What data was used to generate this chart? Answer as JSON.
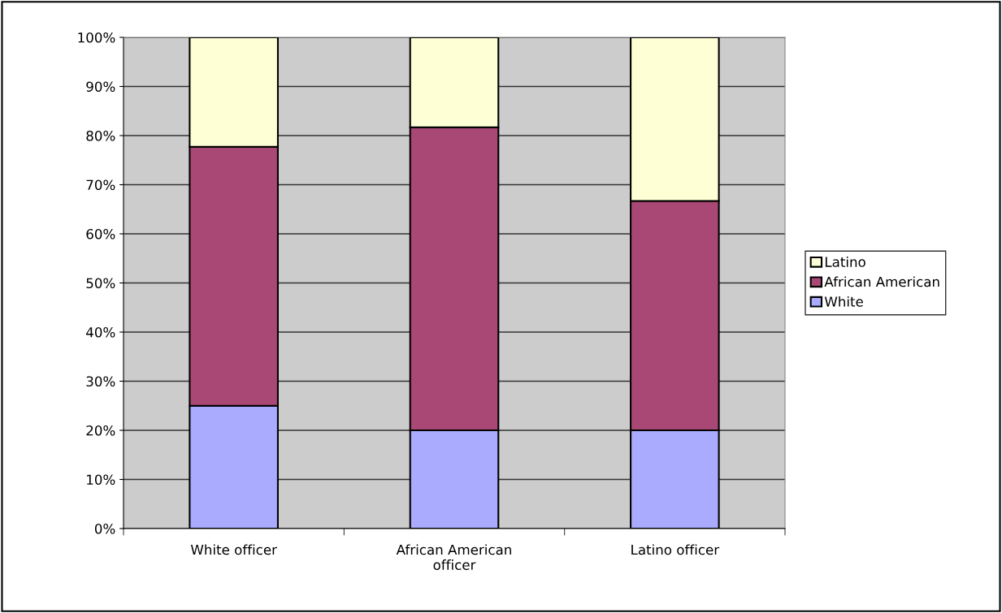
{
  "chart_data": {
    "type": "bar",
    "stacked": true,
    "categories": [
      "White officer",
      "African American\nofficer",
      "Latino officer"
    ],
    "series": [
      {
        "name": "White",
        "color": "#aaaaff",
        "values": [
          25,
          20,
          20
        ]
      },
      {
        "name": "African American",
        "color": "#a94874",
        "values": [
          52.7,
          61.7,
          46.7
        ]
      },
      {
        "name": "Latino",
        "color": "#ffffd5",
        "values": [
          22.3,
          18.3,
          33.3
        ]
      }
    ],
    "ylim": [
      0,
      100
    ],
    "yticks": [
      {
        "value": 0,
        "label": "0%"
      },
      {
        "value": 10,
        "label": "10%"
      },
      {
        "value": 20,
        "label": "20%"
      },
      {
        "value": 30,
        "label": "30%"
      },
      {
        "value": 40,
        "label": "40%"
      },
      {
        "value": 50,
        "label": "50%"
      },
      {
        "value": 60,
        "label": "60%"
      },
      {
        "value": 70,
        "label": "70%"
      },
      {
        "value": 80,
        "label": "80%"
      },
      {
        "value": 90,
        "label": "90%"
      },
      {
        "value": 100,
        "label": "100%"
      }
    ],
    "grid": "y",
    "legend": "right"
  }
}
